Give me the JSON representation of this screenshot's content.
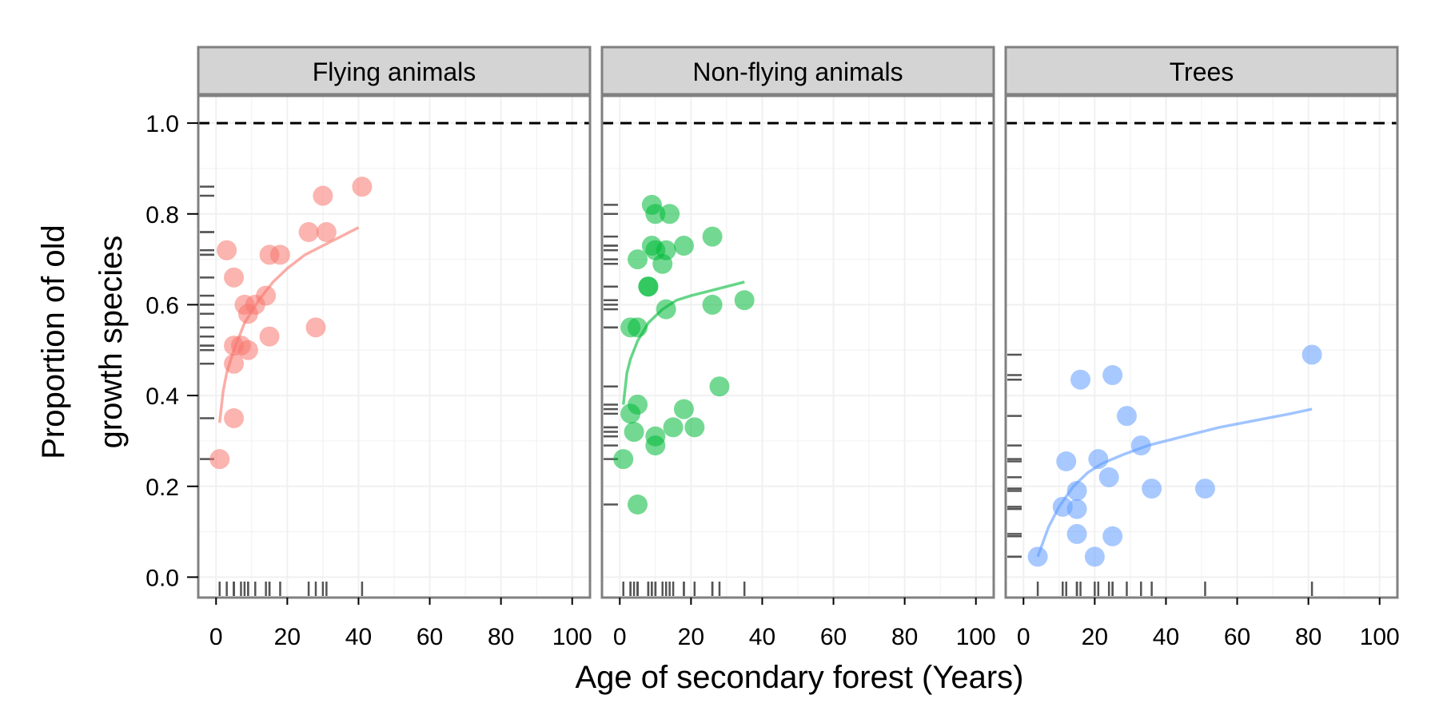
{
  "chart_data": {
    "type": "scatter",
    "xlabel": "Age of secondary forest (Years)",
    "ylabel_lines": [
      "Proportion of old",
      "growth species"
    ],
    "xlim": [
      -5,
      105
    ],
    "ylim": [
      -0.045,
      1.06
    ],
    "x_ticks": [
      0,
      20,
      40,
      60,
      80,
      100
    ],
    "y_ticks": [
      0.0,
      0.2,
      0.4,
      0.6,
      0.8,
      1.0
    ],
    "y_tick_labels": [
      "0.0",
      "0.2",
      "0.4",
      "0.6",
      "0.8",
      "1.0"
    ],
    "reference_line_y": 1.0,
    "grid": true,
    "panels": [
      {
        "title": "Flying animals",
        "color": "#f8766d",
        "points": [
          [
            1,
            0.26
          ],
          [
            3,
            0.72
          ],
          [
            5,
            0.35
          ],
          [
            5,
            0.47
          ],
          [
            5,
            0.51
          ],
          [
            5,
            0.66
          ],
          [
            7,
            0.51
          ],
          [
            8,
            0.6
          ],
          [
            9,
            0.58
          ],
          [
            9,
            0.5
          ],
          [
            11,
            0.6
          ],
          [
            14,
            0.62
          ],
          [
            15,
            0.71
          ],
          [
            15,
            0.53
          ],
          [
            18,
            0.71
          ],
          [
            26,
            0.76
          ],
          [
            28,
            0.55
          ],
          [
            30,
            0.84
          ],
          [
            31,
            0.76
          ],
          [
            41,
            0.86
          ]
        ],
        "fit": [
          [
            1,
            0.34
          ],
          [
            2,
            0.41
          ],
          [
            3,
            0.45
          ],
          [
            5,
            0.5
          ],
          [
            8,
            0.56
          ],
          [
            12,
            0.61
          ],
          [
            16,
            0.65
          ],
          [
            20,
            0.68
          ],
          [
            25,
            0.71
          ],
          [
            30,
            0.73
          ],
          [
            35,
            0.75
          ],
          [
            40,
            0.77
          ]
        ]
      },
      {
        "title": "Non-flying animals",
        "color": "#00ba38",
        "points": [
          [
            1,
            0.26
          ],
          [
            3,
            0.55
          ],
          [
            3,
            0.36
          ],
          [
            4,
            0.32
          ],
          [
            5,
            0.55
          ],
          [
            5,
            0.38
          ],
          [
            5,
            0.7
          ],
          [
            5,
            0.16
          ],
          [
            8,
            0.64
          ],
          [
            8,
            0.64
          ],
          [
            9,
            0.82
          ],
          [
            9,
            0.73
          ],
          [
            10,
            0.72
          ],
          [
            10,
            0.8
          ],
          [
            10,
            0.31
          ],
          [
            10,
            0.29
          ],
          [
            12,
            0.69
          ],
          [
            13,
            0.72
          ],
          [
            13,
            0.59
          ],
          [
            14,
            0.8
          ],
          [
            15,
            0.33
          ],
          [
            18,
            0.73
          ],
          [
            18,
            0.37
          ],
          [
            21,
            0.33
          ],
          [
            26,
            0.75
          ],
          [
            26,
            0.6
          ],
          [
            28,
            0.42
          ],
          [
            35,
            0.61
          ]
        ],
        "fit": [
          [
            1,
            0.38
          ],
          [
            2,
            0.45
          ],
          [
            3,
            0.48
          ],
          [
            5,
            0.52
          ],
          [
            8,
            0.56
          ],
          [
            12,
            0.59
          ],
          [
            16,
            0.61
          ],
          [
            20,
            0.62
          ],
          [
            25,
            0.63
          ],
          [
            30,
            0.64
          ],
          [
            35,
            0.65
          ]
        ]
      },
      {
        "title": "Trees",
        "color": "#619cff",
        "points": [
          [
            4,
            0.045
          ],
          [
            11,
            0.155
          ],
          [
            12,
            0.255
          ],
          [
            15,
            0.19
          ],
          [
            15,
            0.15
          ],
          [
            15,
            0.095
          ],
          [
            16,
            0.435
          ],
          [
            20,
            0.045
          ],
          [
            21,
            0.26
          ],
          [
            24,
            0.22
          ],
          [
            25,
            0.445
          ],
          [
            25,
            0.09
          ],
          [
            29,
            0.355
          ],
          [
            33,
            0.29
          ],
          [
            36,
            0.195
          ],
          [
            51,
            0.195
          ],
          [
            81,
            0.49
          ]
        ],
        "fit": [
          [
            4,
            0.045
          ],
          [
            7,
            0.11
          ],
          [
            10,
            0.155
          ],
          [
            14,
            0.2
          ],
          [
            18,
            0.23
          ],
          [
            22,
            0.25
          ],
          [
            28,
            0.27
          ],
          [
            35,
            0.29
          ],
          [
            45,
            0.31
          ],
          [
            55,
            0.33
          ],
          [
            65,
            0.345
          ],
          [
            75,
            0.36
          ],
          [
            81,
            0.37
          ]
        ]
      }
    ]
  }
}
